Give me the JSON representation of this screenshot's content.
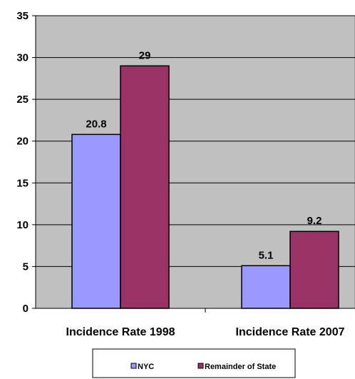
{
  "chart_data": {
    "type": "bar",
    "categories": [
      "Incidence Rate 1998",
      "Incidence Rate 2007"
    ],
    "series": [
      {
        "name": "NYC",
        "values": [
          20.8,
          5.1
        ],
        "color": "#9999ff"
      },
      {
        "name": "Remainder of State",
        "values": [
          29,
          9.2
        ],
        "color": "#993366"
      }
    ],
    "data_labels": [
      [
        "20.8",
        "5.1"
      ],
      [
        "29",
        "9.2"
      ]
    ],
    "yticks": [
      0,
      5,
      10,
      15,
      20,
      25,
      30,
      35
    ],
    "ylim": [
      0,
      35
    ],
    "grid": true,
    "legend_position": "bottom",
    "plot_background": "#c0c0c0"
  }
}
